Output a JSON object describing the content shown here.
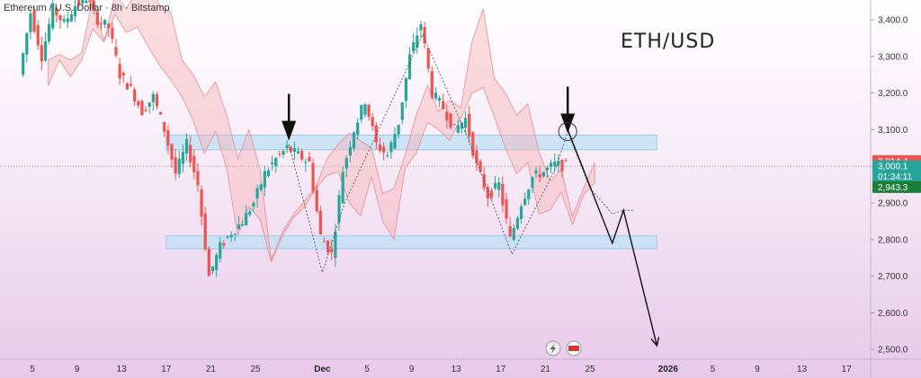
{
  "symbol_title": "Ethereum / U.S. Dollar · 8h · Bitstamp",
  "pair_label": "ETH/USD",
  "colors": {
    "up": "#26a69a",
    "down": "#ef5350",
    "zone_fill": "#bfe0f5",
    "cloud_red": "#f7b3b8",
    "cloud_green": "#b5ddb8"
  },
  "price_badges": [
    {
      "label": "3,014.4",
      "value": 3014.4,
      "color": "#ef5350"
    },
    {
      "label": "3,000.1",
      "value": 3000.1,
      "color": "#26a69a"
    },
    {
      "label": "01:34:11",
      "value": 2972,
      "color": "#26a69a"
    },
    {
      "label": "2,943.3",
      "value": 2943.3,
      "color": "#1b7f3a"
    }
  ],
  "chart_data": {
    "type": "candlestick",
    "y_ticks": [
      3400,
      3300,
      3200,
      3100,
      3000,
      2900,
      2800,
      2700,
      2600,
      2500
    ],
    "y_tick_labels": [
      "3,400.0",
      "3,300.0",
      "3,200.0",
      "3,100.0",
      "3,000.0",
      "2,900.0",
      "2,800.0",
      "2,700.0",
      "2,600.0",
      "2,500.0"
    ],
    "ylim": [
      2470,
      3450
    ],
    "x_tick_labels": [
      "5",
      "9",
      "13",
      "17",
      "21",
      "25",
      "Dec",
      "5",
      "9",
      "13",
      "17",
      "21",
      "25",
      "2026",
      "5",
      "9",
      "13",
      "17"
    ],
    "x_tick_dates": [
      "2025-11-05",
      "2025-11-09",
      "2025-11-13",
      "2025-11-17",
      "2025-11-21",
      "2025-11-25",
      "2025-12-01",
      "2025-12-05",
      "2025-12-09",
      "2025-12-13",
      "2025-12-17",
      "2025-12-21",
      "2025-12-25",
      "2026-01-01",
      "2026-01-05",
      "2026-01-09",
      "2026-01-13",
      "2026-01-17"
    ],
    "zones": [
      {
        "from": 3045,
        "to": 3085
      },
      {
        "from": 2775,
        "to": 2810
      }
    ],
    "price_path": [
      [
        "2025-11-04",
        3250
      ],
      [
        "2025-11-05",
        3420
      ],
      [
        "2025-11-06",
        3300
      ],
      [
        "2025-11-07",
        3430
      ],
      [
        "2025-11-08",
        3390
      ],
      [
        "2025-11-09",
        3440
      ],
      [
        "2025-11-10",
        3460
      ],
      [
        "2025-11-11",
        3400
      ],
      [
        "2025-11-12",
        3380
      ],
      [
        "2025-11-13",
        3250
      ],
      [
        "2025-11-14",
        3210
      ],
      [
        "2025-11-15",
        3150
      ],
      [
        "2025-11-16",
        3190
      ],
      [
        "2025-11-17",
        3100
      ],
      [
        "2025-11-18",
        2980
      ],
      [
        "2025-11-19",
        3060
      ],
      [
        "2025-11-20",
        2950
      ],
      [
        "2025-11-21",
        2700
      ],
      [
        "2025-11-22",
        2780
      ],
      [
        "2025-11-23",
        2820
      ],
      [
        "2025-11-24",
        2850
      ],
      [
        "2025-11-25",
        2900
      ],
      [
        "2025-11-26",
        2980
      ],
      [
        "2025-11-27",
        3020
      ],
      [
        "2025-11-28",
        3050
      ],
      [
        "2025-11-29",
        3030
      ],
      [
        "2025-11-30",
        3010
      ],
      [
        "2025-12-01",
        2810
      ],
      [
        "2025-12-02",
        2760
      ],
      [
        "2025-12-03",
        2990
      ],
      [
        "2025-12-04",
        3100
      ],
      [
        "2025-12-05",
        3180
      ],
      [
        "2025-12-06",
        3060
      ],
      [
        "2025-12-07",
        3030
      ],
      [
        "2025-12-08",
        3120
      ],
      [
        "2025-12-09",
        3300
      ],
      [
        "2025-12-10",
        3390
      ],
      [
        "2025-12-11",
        3200
      ],
      [
        "2025-12-12",
        3160
      ],
      [
        "2025-12-13",
        3100
      ],
      [
        "2025-12-14",
        3130
      ],
      [
        "2025-12-15",
        3000
      ],
      [
        "2025-12-16",
        2920
      ],
      [
        "2025-12-17",
        2950
      ],
      [
        "2025-12-18",
        2800
      ],
      [
        "2025-12-19",
        2900
      ],
      [
        "2025-12-20",
        2970
      ],
      [
        "2025-12-21",
        2985
      ],
      [
        "2025-12-22",
        3005
      ],
      [
        "2025-12-23",
        3000
      ]
    ],
    "projection_path": [
      [
        "2025-12-22",
        3000
      ],
      [
        "2025-12-23",
        3095
      ],
      [
        "2025-12-25",
        2940
      ],
      [
        "2025-12-27",
        2870
      ],
      [
        "2025-12-28",
        2880
      ],
      [
        "2025-12-29",
        2880
      ]
    ],
    "arrow_path": [
      [
        "2025-12-23",
        3100
      ],
      [
        "2025-12-27",
        2790
      ],
      [
        "2025-12-28",
        2880
      ],
      [
        "2025-12-31",
        2510
      ]
    ],
    "pattern_lines": [
      [
        [
          "2025-11-28",
          3060
        ],
        [
          "2025-12-01",
          2710
        ],
        [
          "2025-12-03",
          2900
        ],
        [
          "2025-12-10",
          3360
        ],
        [
          "2025-12-14",
          3080
        ],
        [
          "2025-12-18",
          2760
        ],
        [
          "2025-12-22",
          3000
        ]
      ]
    ],
    "markers": [
      {
        "date": "2025-11-28",
        "value": 3070,
        "shape": "down-arrow"
      },
      {
        "date": "2025-12-23",
        "value": 3090,
        "shape": "down-arrow"
      },
      {
        "date": "2025-12-23",
        "value": 3095,
        "shape": "circle"
      }
    ]
  }
}
